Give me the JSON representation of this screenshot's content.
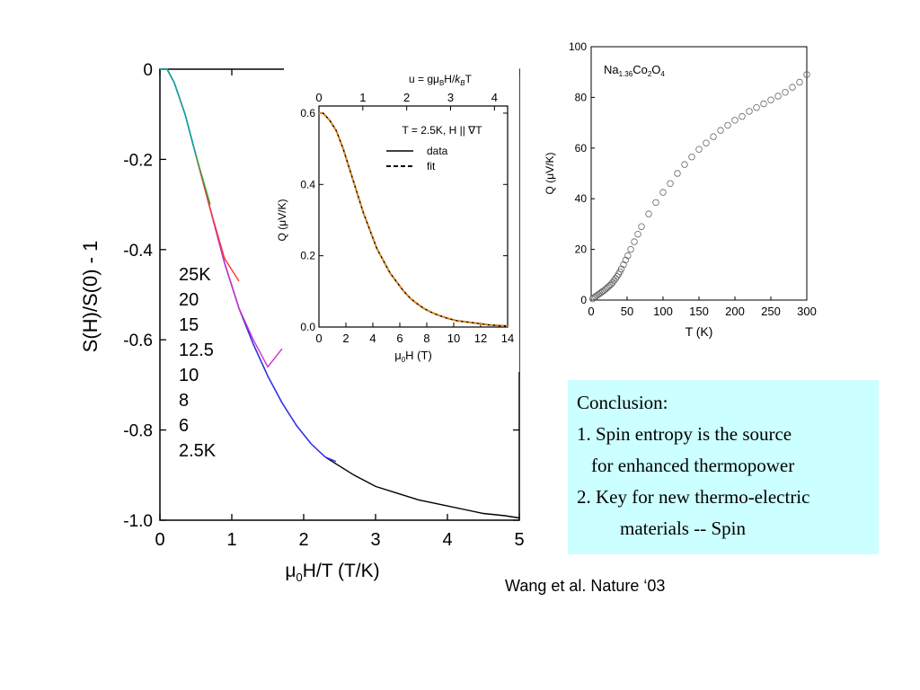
{
  "chart_data": [
    {
      "type": "line",
      "ylabel": "S(H)/S(0) - 1",
      "xlabel": "μ0H/T (T/K)",
      "xlim": [
        0,
        5
      ],
      "ylim": [
        -1.0,
        0
      ],
      "xticks": [
        "0",
        "1",
        "2",
        "3",
        "4",
        "5"
      ],
      "yticks": [
        "0",
        "-0.2",
        "-0.4",
        "-0.6",
        "-0.8",
        "-1.0"
      ],
      "legend_labels": [
        "25K",
        "20",
        "15",
        "12.5",
        "10",
        "8",
        "6",
        "2.5K"
      ],
      "series": [
        {
          "name": "2.5K",
          "color": "#000000",
          "x": [
            0,
            0.1,
            0.2,
            0.35,
            0.5,
            0.7,
            0.9,
            1.1,
            1.3,
            1.5,
            1.7,
            1.9,
            2.1,
            2.3,
            2.5,
            2.7,
            3.0,
            3.3,
            3.6,
            3.9,
            4.2,
            4.5,
            4.8,
            5.0
          ],
          "y": [
            0,
            0.0,
            -0.03,
            -0.1,
            -0.19,
            -0.31,
            -0.43,
            -0.53,
            -0.61,
            -0.68,
            -0.74,
            -0.79,
            -0.83,
            -0.86,
            -0.88,
            -0.9,
            -0.925,
            -0.94,
            -0.955,
            -0.965,
            -0.975,
            -0.985,
            -0.99,
            -0.995
          ]
        },
        {
          "name": "6",
          "color": "#3333ff",
          "x": [
            0,
            0.1,
            0.2,
            0.35,
            0.5,
            0.7,
            0.9,
            1.1,
            1.3,
            1.5,
            1.7,
            1.9,
            2.1,
            2.3,
            2.45
          ],
          "y": [
            0,
            0.0,
            -0.03,
            -0.1,
            -0.19,
            -0.31,
            -0.43,
            -0.53,
            -0.61,
            -0.68,
            -0.74,
            -0.79,
            -0.83,
            -0.86,
            -0.87
          ]
        },
        {
          "name": "10",
          "color": "#cc33cc",
          "x": [
            0,
            0.1,
            0.2,
            0.35,
            0.5,
            0.7,
            0.9,
            1.1,
            1.3,
            1.5,
            1.7
          ],
          "y": [
            0,
            0.0,
            -0.03,
            -0.1,
            -0.19,
            -0.31,
            -0.43,
            -0.53,
            -0.6,
            -0.66,
            -0.62
          ]
        },
        {
          "name": "15",
          "color": "#ff3333",
          "x": [
            0,
            0.1,
            0.2,
            0.35,
            0.5,
            0.7,
            0.9,
            1.1
          ],
          "y": [
            0,
            0.0,
            -0.03,
            -0.1,
            -0.19,
            -0.31,
            -0.42,
            -0.47
          ]
        },
        {
          "name": "20",
          "color": "#33aa33",
          "x": [
            0,
            0.1,
            0.2,
            0.35,
            0.5,
            0.7
          ],
          "y": [
            0,
            0.0,
            -0.03,
            -0.1,
            -0.19,
            -0.3
          ]
        },
        {
          "name": "25K",
          "color": "#00aaaa",
          "x": [
            0,
            0.1,
            0.2,
            0.35,
            0.5
          ],
          "y": [
            0,
            0.0,
            -0.03,
            -0.1,
            -0.19
          ]
        }
      ]
    },
    {
      "type": "line",
      "xlabel": "μ0H (T)",
      "ylabel": "Q (μV/K)",
      "top_xlabel": "u = gμBH/kBT",
      "xlim": [
        0,
        14
      ],
      "ylim": [
        0,
        0.62
      ],
      "top_xlim": [
        0,
        4.3
      ],
      "xticks": [
        "0",
        "2",
        "4",
        "6",
        "8",
        "10",
        "12",
        "14"
      ],
      "top_xticks": [
        "0",
        "1",
        "2",
        "3",
        "4"
      ],
      "yticks": [
        "0.0",
        "0.2",
        "0.4",
        "0.6"
      ],
      "annotation": "T = 2.5K, H || ∇T",
      "legend": [
        "data",
        "fit"
      ],
      "series": [
        {
          "name": "data",
          "color": "#000000",
          "x": [
            0,
            0.3,
            0.8,
            1.3,
            1.8,
            2.3,
            2.8,
            3.3,
            3.8,
            4.3,
            4.8,
            5.3,
            5.8,
            6.3,
            6.8,
            7.3,
            7.8,
            8.3,
            8.8,
            9.5,
            10.2,
            11.0,
            11.8,
            12.6,
            13.4,
            14.0
          ],
          "y": [
            0.6,
            0.6,
            0.58,
            0.55,
            0.5,
            0.44,
            0.38,
            0.32,
            0.27,
            0.22,
            0.185,
            0.15,
            0.125,
            0.1,
            0.08,
            0.065,
            0.052,
            0.042,
            0.034,
            0.025,
            0.018,
            0.014,
            0.01,
            0.006,
            0.004,
            0.003
          ]
        },
        {
          "name": "fit",
          "color": "#e08a1e",
          "x": [
            0,
            0.3,
            0.8,
            1.3,
            1.8,
            2.3,
            2.8,
            3.3,
            3.8,
            4.3,
            4.8,
            5.3,
            5.8,
            6.3,
            6.8,
            7.3,
            7.8,
            8.3,
            8.8,
            9.5,
            10.2,
            11.0,
            11.8,
            12.6,
            13.4,
            14.0
          ],
          "y": [
            0.6,
            0.6,
            0.58,
            0.55,
            0.5,
            0.44,
            0.38,
            0.32,
            0.27,
            0.22,
            0.185,
            0.15,
            0.125,
            0.1,
            0.08,
            0.065,
            0.052,
            0.042,
            0.034,
            0.025,
            0.018,
            0.014,
            0.01,
            0.006,
            0.004,
            0.003
          ]
        }
      ]
    },
    {
      "type": "scatter",
      "ylabel": "Q (μV/K)",
      "xlabel": "T (K)",
      "xlim": [
        0,
        300
      ],
      "ylim": [
        0,
        100
      ],
      "xticks": [
        "0",
        "50",
        "100",
        "150",
        "200",
        "250",
        "300"
      ],
      "yticks": [
        "0",
        "20",
        "40",
        "60",
        "80",
        "100"
      ],
      "annotation": "Na1.36Co2O4",
      "series": [
        {
          "name": "",
          "color": "#666666",
          "x": [
            2,
            4,
            6,
            8,
            10,
            12,
            14,
            16,
            18,
            20,
            22,
            24,
            26,
            28,
            30,
            32,
            34,
            36,
            38,
            40,
            42,
            45,
            48,
            51,
            55,
            60,
            65,
            70,
            80,
            90,
            100,
            110,
            120,
            130,
            140,
            150,
            160,
            170,
            180,
            190,
            200,
            210,
            220,
            230,
            240,
            250,
            260,
            270,
            280,
            290,
            300
          ],
          "y": [
            0.5,
            1,
            1.4,
            1.8,
            2.2,
            2.6,
            3.0,
            3.4,
            3.8,
            4.3,
            4.8,
            5.3,
            5.8,
            6.3,
            7.0,
            7.8,
            8.5,
            9.3,
            10.2,
            11.2,
            12.3,
            14.0,
            15.8,
            17.5,
            20,
            23,
            26,
            29,
            34,
            38.5,
            42.5,
            46,
            50,
            53.5,
            56.5,
            59.5,
            62,
            64.5,
            67,
            69,
            71,
            72.5,
            74.5,
            76,
            77.5,
            79,
            80.5,
            82,
            84,
            86,
            89
          ]
        }
      ]
    }
  ],
  "labels": {
    "main_ylabel": "S(H)/S(0) - 1",
    "main_xlabel_mu": "μ",
    "main_xlabel_sub": "0",
    "main_xlabel_rest": "H/T (T/K)",
    "inset_top_label_pre": "u = gμ",
    "inset_top_label_sub1": "B",
    "inset_top_label_mid": "H/",
    "inset_top_label_k": "k",
    "inset_top_label_sub2": "B",
    "inset_top_label_post": "T",
    "inset_annotation": "T = 2.5K, H || ∇T",
    "inset_legend_data": "data",
    "inset_legend_fit": "fit",
    "inset_ylabel": "Q (μV/K)",
    "inset_xlabel_mu": "μ",
    "inset_xlabel_sub": "0",
    "inset_xlabel_rest": "H  (T)",
    "side_ylabel": "Q (μV/K)",
    "side_xlabel": "T (K)",
    "side_annotation_na": "Na",
    "side_annotation_sub1": "1.36",
    "side_annotation_co": "Co",
    "side_annotation_sub2": "2",
    "side_annotation_o": "O",
    "side_annotation_sub3": "4"
  },
  "conclusion": {
    "title": "Conclusion:",
    "line1": "1. Spin entropy is the source",
    "line2": "for enhanced thermopower",
    "line3": "2. Key for new thermo-electric",
    "line4": "materials -- Spin"
  },
  "citation": "Wang et al. Nature ‘03"
}
